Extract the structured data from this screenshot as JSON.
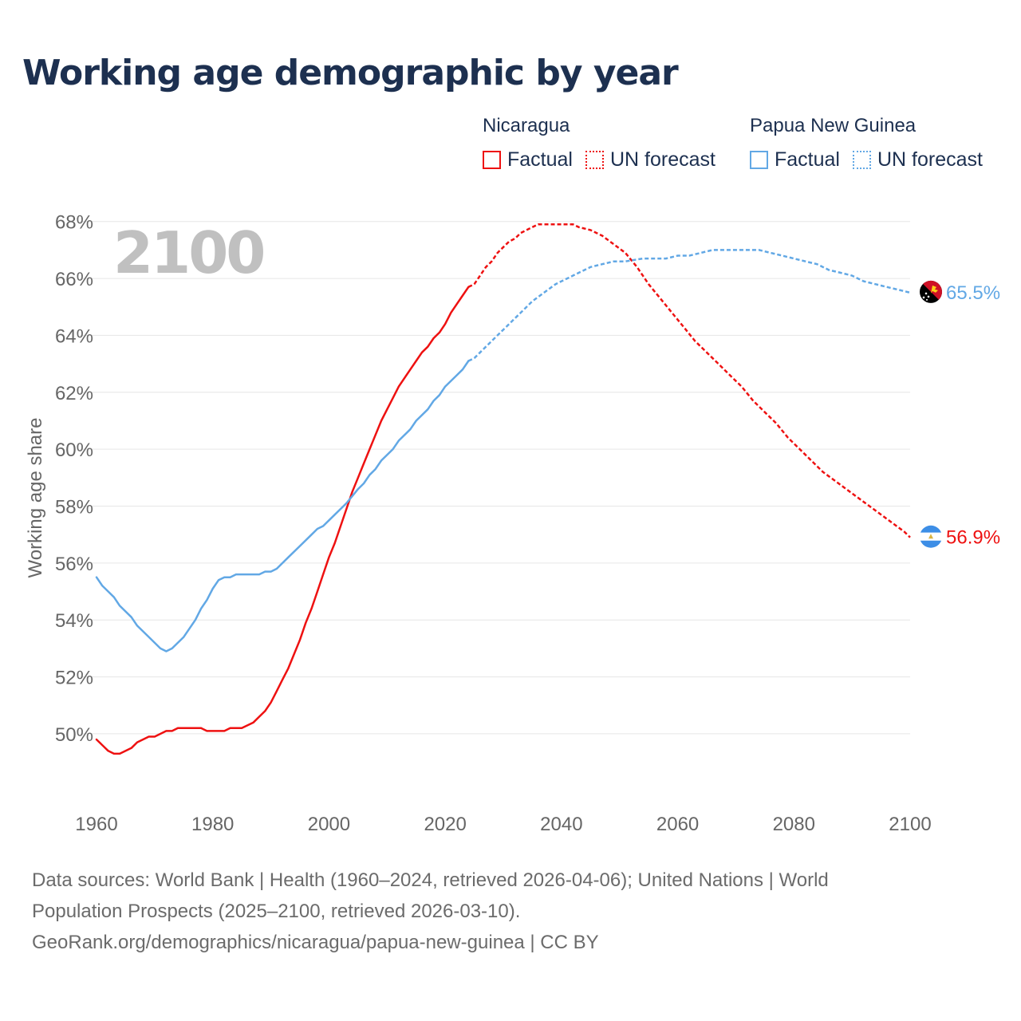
{
  "title": "Working age demographic by year",
  "colors": {
    "nicaragua": "#ee1111",
    "png": "#62a8e5",
    "title": "#1d3050",
    "grid": "#e6e6e6",
    "axis_text": "#666666",
    "year_watermark": "#c0c0c0"
  },
  "legend": [
    {
      "name": "Nicaragua",
      "factual_label": "Factual",
      "forecast_label": "UN forecast",
      "color_key": "nicaragua"
    },
    {
      "name": "Papua New Guinea",
      "factual_label": "Factual",
      "forecast_label": "UN forecast",
      "color_key": "png"
    }
  ],
  "chart_data": {
    "type": "line",
    "title": "Working age demographic by year",
    "ylabel": "Working age share",
    "xlabel": "",
    "year_display": "2100",
    "xlim": [
      1960,
      2100
    ],
    "ylim": [
      47.7,
      68.3
    ],
    "x_ticks": [
      1960,
      1980,
      2000,
      2020,
      2040,
      2060,
      2080,
      2100
    ],
    "y_ticks": [
      50,
      52,
      54,
      56,
      58,
      60,
      62,
      64,
      66,
      68
    ],
    "y_tick_labels": [
      "50%",
      "52%",
      "54%",
      "56%",
      "58%",
      "60%",
      "62%",
      "64%",
      "66%",
      "68%"
    ],
    "forecast_start": 2024,
    "series": [
      {
        "name": "Nicaragua",
        "color_key": "nicaragua",
        "end_label": "56.9%",
        "flag": "nicaragua-flag-icon",
        "points": [
          [
            1960,
            49.8
          ],
          [
            1962,
            49.4
          ],
          [
            1963,
            49.3
          ],
          [
            1964,
            49.3
          ],
          [
            1966,
            49.5
          ],
          [
            1967,
            49.7
          ],
          [
            1969,
            49.9
          ],
          [
            1970,
            49.9
          ],
          [
            1972,
            50.1
          ],
          [
            1973,
            50.1
          ],
          [
            1974,
            50.2
          ],
          [
            1978,
            50.2
          ],
          [
            1979,
            50.1
          ],
          [
            1982,
            50.1
          ],
          [
            1983,
            50.2
          ],
          [
            1985,
            50.2
          ],
          [
            1987,
            50.4
          ],
          [
            1988,
            50.6
          ],
          [
            1989,
            50.8
          ],
          [
            1990,
            51.1
          ],
          [
            1991,
            51.5
          ],
          [
            1992,
            51.9
          ],
          [
            1993,
            52.3
          ],
          [
            1994,
            52.8
          ],
          [
            1995,
            53.3
          ],
          [
            1996,
            53.9
          ],
          [
            1997,
            54.4
          ],
          [
            1998,
            55.0
          ],
          [
            1999,
            55.6
          ],
          [
            2000,
            56.2
          ],
          [
            2001,
            56.7
          ],
          [
            2002,
            57.3
          ],
          [
            2003,
            57.9
          ],
          [
            2004,
            58.5
          ],
          [
            2005,
            59.0
          ],
          [
            2006,
            59.5
          ],
          [
            2007,
            60.0
          ],
          [
            2008,
            60.5
          ],
          [
            2009,
            61.0
          ],
          [
            2010,
            61.4
          ],
          [
            2011,
            61.8
          ],
          [
            2012,
            62.2
          ],
          [
            2013,
            62.5
          ],
          [
            2014,
            62.8
          ],
          [
            2015,
            63.1
          ],
          [
            2016,
            63.4
          ],
          [
            2017,
            63.6
          ],
          [
            2018,
            63.9
          ],
          [
            2019,
            64.1
          ],
          [
            2020,
            64.4
          ],
          [
            2021,
            64.8
          ],
          [
            2022,
            65.1
          ],
          [
            2023,
            65.4
          ],
          [
            2024,
            65.7
          ],
          [
            2025,
            65.8
          ],
          [
            2026,
            66.1
          ],
          [
            2027,
            66.4
          ],
          [
            2028,
            66.6
          ],
          [
            2029,
            66.9
          ],
          [
            2030,
            67.1
          ],
          [
            2031,
            67.3
          ],
          [
            2032,
            67.4
          ],
          [
            2033,
            67.6
          ],
          [
            2034,
            67.7
          ],
          [
            2035,
            67.8
          ],
          [
            2036,
            67.9
          ],
          [
            2042,
            67.9
          ],
          [
            2043,
            67.8
          ],
          [
            2045,
            67.7
          ],
          [
            2047,
            67.5
          ],
          [
            2049,
            67.2
          ],
          [
            2051,
            66.9
          ],
          [
            2053,
            66.4
          ],
          [
            2055,
            65.8
          ],
          [
            2057,
            65.3
          ],
          [
            2059,
            64.8
          ],
          [
            2061,
            64.3
          ],
          [
            2063,
            63.8
          ],
          [
            2065,
            63.4
          ],
          [
            2067,
            63.0
          ],
          [
            2069,
            62.6
          ],
          [
            2071,
            62.2
          ],
          [
            2073,
            61.7
          ],
          [
            2075,
            61.3
          ],
          [
            2077,
            60.9
          ],
          [
            2079,
            60.4
          ],
          [
            2081,
            60.0
          ],
          [
            2083,
            59.6
          ],
          [
            2085,
            59.2
          ],
          [
            2087,
            58.9
          ],
          [
            2089,
            58.6
          ],
          [
            2091,
            58.3
          ],
          [
            2093,
            58.0
          ],
          [
            2095,
            57.7
          ],
          [
            2097,
            57.4
          ],
          [
            2099,
            57.1
          ],
          [
            2100,
            56.9
          ]
        ]
      },
      {
        "name": "Papua New Guinea",
        "color_key": "png",
        "end_label": "65.5%",
        "flag": "papua-new-guinea-flag-icon",
        "points": [
          [
            1960,
            55.5
          ],
          [
            1961,
            55.2
          ],
          [
            1962,
            55.0
          ],
          [
            1963,
            54.8
          ],
          [
            1964,
            54.5
          ],
          [
            1966,
            54.1
          ],
          [
            1967,
            53.8
          ],
          [
            1969,
            53.4
          ],
          [
            1971,
            53.0
          ],
          [
            1972,
            52.9
          ],
          [
            1973,
            53.0
          ],
          [
            1975,
            53.4
          ],
          [
            1977,
            54.0
          ],
          [
            1978,
            54.4
          ],
          [
            1979,
            54.7
          ],
          [
            1980,
            55.1
          ],
          [
            1981,
            55.4
          ],
          [
            1982,
            55.5
          ],
          [
            1983,
            55.5
          ],
          [
            1984,
            55.6
          ],
          [
            1988,
            55.6
          ],
          [
            1989,
            55.7
          ],
          [
            1990,
            55.7
          ],
          [
            1991,
            55.8
          ],
          [
            1993,
            56.2
          ],
          [
            1995,
            56.6
          ],
          [
            1997,
            57.0
          ],
          [
            1998,
            57.2
          ],
          [
            1999,
            57.3
          ],
          [
            2001,
            57.7
          ],
          [
            2003,
            58.1
          ],
          [
            2005,
            58.6
          ],
          [
            2006,
            58.8
          ],
          [
            2007,
            59.1
          ],
          [
            2008,
            59.3
          ],
          [
            2009,
            59.6
          ],
          [
            2011,
            60.0
          ],
          [
            2012,
            60.3
          ],
          [
            2014,
            60.7
          ],
          [
            2015,
            61.0
          ],
          [
            2017,
            61.4
          ],
          [
            2018,
            61.7
          ],
          [
            2019,
            61.9
          ],
          [
            2020,
            62.2
          ],
          [
            2022,
            62.6
          ],
          [
            2023,
            62.8
          ],
          [
            2024,
            63.1
          ],
          [
            2025,
            63.2
          ],
          [
            2027,
            63.6
          ],
          [
            2029,
            64.0
          ],
          [
            2031,
            64.4
          ],
          [
            2033,
            64.8
          ],
          [
            2035,
            65.2
          ],
          [
            2037,
            65.5
          ],
          [
            2039,
            65.8
          ],
          [
            2041,
            66.0
          ],
          [
            2043,
            66.2
          ],
          [
            2045,
            66.4
          ],
          [
            2047,
            66.5
          ],
          [
            2049,
            66.6
          ],
          [
            2051,
            66.6
          ],
          [
            2054,
            66.7
          ],
          [
            2058,
            66.7
          ],
          [
            2060,
            66.8
          ],
          [
            2062,
            66.8
          ],
          [
            2064,
            66.9
          ],
          [
            2066,
            67.0
          ],
          [
            2074,
            67.0
          ],
          [
            2076,
            66.9
          ],
          [
            2078,
            66.8
          ],
          [
            2080,
            66.7
          ],
          [
            2082,
            66.6
          ],
          [
            2084,
            66.5
          ],
          [
            2086,
            66.3
          ],
          [
            2088,
            66.2
          ],
          [
            2090,
            66.1
          ],
          [
            2092,
            65.9
          ],
          [
            2094,
            65.8
          ],
          [
            2096,
            65.7
          ],
          [
            2098,
            65.6
          ],
          [
            2100,
            65.5
          ]
        ]
      }
    ]
  },
  "footer": {
    "line1": "Data sources: World Bank | Health (1960–2024, retrieved 2026-04-06); United Nations | World",
    "line2": "Population Prospects (2025–2100, retrieved 2026-03-10).",
    "line3": "GeoRank.org/demographics/nicaragua/papua-new-guinea | CC BY"
  }
}
